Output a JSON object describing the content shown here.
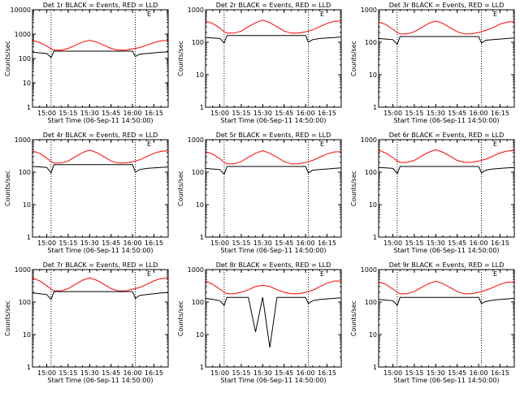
{
  "panels": [
    {
      "title": "Det 1r BLACK = Events, RED = LLD",
      "corner": "E",
      "ylabel": "Counts/sec",
      "xlabel": "Start Time (06-Sep-11 14:50:00)"
    },
    {
      "title": "Det 2r BLACK = Events, RED = LLD",
      "corner": "E",
      "ylabel": "Counts/sec",
      "xlabel": "Start Time (06-Sep-11 14:50:00)"
    },
    {
      "title": "Det 3r BLACK = Events, RED = LLD",
      "corner": "E",
      "ylabel": "Counts/sec",
      "xlabel": "Start Time (06-Sep-11 14:50:00)"
    },
    {
      "title": "Det 4r BLACK = Events, RED = LLD",
      "corner": "E",
      "ylabel": "Counts/sec",
      "xlabel": "Start Time (06-Sep-11 14:50:00)"
    },
    {
      "title": "Det 5r BLACK = Events, RED = LLD",
      "corner": "E",
      "ylabel": "Counts/sec",
      "xlabel": "Start Time (06-Sep-11 14:50:00)"
    },
    {
      "title": "Det 6r BLACK = Events, RED = LLD",
      "corner": "E",
      "ylabel": "Counts/sec",
      "xlabel": "Start Time (06-Sep-11 14:50:00)"
    },
    {
      "title": "Det 7r BLACK = Events, RED = LLD",
      "corner": "E",
      "ylabel": "Counts/sec",
      "xlabel": "Start Time (06-Sep-11 14:50:00)"
    },
    {
      "title": "Det 8r BLACK = Events, RED = LLD",
      "corner": "E",
      "ylabel": "Counts/sec",
      "xlabel": "Start Time (06-Sep-11 14:50:00)"
    },
    {
      "title": "Det 9r BLACK = Events, RED = LLD",
      "corner": "E",
      "ylabel": "Counts/sec",
      "xlabel": "Start Time (06-Sep-11 14:50:00)"
    }
  ],
  "chart_data": {
    "type": "line",
    "yscale": "log",
    "xlim": [
      "14:50",
      "16:25"
    ],
    "xticks": [
      "15:00",
      "15:15",
      "15:30",
      "15:45",
      "16:00",
      "16:15"
    ],
    "dotted_vlines": [
      "15:03",
      "16:02"
    ],
    "colors": {
      "events": "#000000",
      "lld": "#ff0000"
    },
    "x": [
      "14:50",
      "14:55",
      "15:00",
      "15:03",
      "15:05",
      "15:10",
      "15:15",
      "15:20",
      "15:25",
      "15:30",
      "15:35",
      "15:40",
      "15:45",
      "15:50",
      "15:55",
      "16:00",
      "16:02",
      "16:05",
      "16:10",
      "16:15",
      "16:20",
      "16:25"
    ],
    "panels": [
      {
        "ylim": [
          1,
          10000
        ],
        "yticks": [
          1,
          10,
          100,
          1000,
          10000
        ],
        "series": [
          {
            "key": "lld",
            "values": [
              550,
              450,
              320,
              250,
              220,
              220,
              260,
              350,
              470,
              560,
              470,
              350,
              260,
              220,
              220,
              250,
              260,
              280,
              350,
              450,
              530,
              550
            ]
          },
          {
            "key": "events",
            "values": [
              180,
              170,
              160,
              110,
              200,
              200,
              200,
              200,
              200,
              200,
              200,
              200,
              200,
              200,
              200,
              200,
              120,
              150,
              160,
              170,
              180,
              185
            ]
          }
        ]
      },
      {
        "ylim": [
          1,
          1000
        ],
        "yticks": [
          1,
          10,
          100,
          1000
        ],
        "series": [
          {
            "key": "lld",
            "values": [
              450,
              380,
              270,
              210,
              190,
              190,
              220,
              300,
              400,
              480,
              400,
              300,
              220,
              190,
              190,
              210,
              220,
              240,
              300,
              380,
              440,
              450
            ]
          },
          {
            "key": "events",
            "values": [
              140,
              135,
              130,
              95,
              160,
              160,
              160,
              160,
              160,
              160,
              160,
              160,
              160,
              160,
              160,
              160,
              100,
              120,
              130,
              135,
              140,
              145
            ]
          }
        ]
      },
      {
        "ylim": [
          1,
          1000
        ],
        "yticks": [
          1,
          10,
          100,
          1000
        ],
        "series": [
          {
            "key": "lld",
            "values": [
              420,
              350,
              250,
              200,
              180,
              180,
              210,
              280,
              380,
              450,
              380,
              280,
              210,
              180,
              180,
              200,
              210,
              230,
              280,
              360,
              420,
              430
            ]
          },
          {
            "key": "events",
            "values": [
              130,
              125,
              120,
              85,
              150,
              150,
              150,
              150,
              150,
              150,
              150,
              150,
              150,
              150,
              150,
              150,
              95,
              115,
              120,
              125,
              130,
              135
            ]
          }
        ]
      },
      {
        "ylim": [
          1,
          1000
        ],
        "yticks": [
          1,
          10,
          100,
          1000
        ],
        "series": [
          {
            "key": "lld",
            "values": [
              450,
              380,
              270,
              210,
              190,
              190,
              220,
              300,
              400,
              480,
              400,
              300,
              220,
              190,
              190,
              210,
              220,
              240,
              300,
              380,
              440,
              450
            ]
          },
          {
            "key": "events",
            "values": [
              150,
              145,
              140,
              95,
              170,
              170,
              170,
              170,
              170,
              170,
              170,
              170,
              170,
              170,
              170,
              170,
              100,
              120,
              130,
              135,
              140,
              145
            ]
          }
        ]
      },
      {
        "ylim": [
          1,
          1000
        ],
        "yticks": [
          1,
          10,
          100,
          1000
        ],
        "series": [
          {
            "key": "lld",
            "values": [
              430,
              360,
              260,
              200,
              180,
              180,
              210,
              290,
              380,
              460,
              380,
              290,
              210,
              180,
              180,
              200,
              210,
              230,
              290,
              360,
              420,
              430
            ]
          },
          {
            "key": "events",
            "values": [
              130,
              125,
              120,
              85,
              150,
              150,
              150,
              150,
              150,
              150,
              150,
              150,
              150,
              150,
              150,
              150,
              95,
              115,
              120,
              125,
              130,
              135
            ]
          }
        ]
      },
      {
        "ylim": [
          1,
          1000
        ],
        "yticks": [
          1,
          10,
          100,
          1000
        ],
        "series": [
          {
            "key": "lld",
            "values": [
              470,
              390,
              280,
              220,
              200,
              200,
              230,
              310,
              410,
              490,
              410,
              310,
              230,
              200,
              200,
              220,
              230,
              250,
              310,
              390,
              450,
              460
            ]
          },
          {
            "key": "events",
            "values": [
              140,
              135,
              130,
              90,
              150,
              150,
              150,
              150,
              150,
              150,
              150,
              150,
              150,
              150,
              150,
              150,
              95,
              115,
              125,
              130,
              135,
              140
            ]
          }
        ]
      },
      {
        "ylim": [
          1,
          1000
        ],
        "yticks": [
          1,
          10,
          100,
          1000
        ],
        "series": [
          {
            "key": "lld",
            "values": [
              550,
              450,
              320,
              250,
              220,
              220,
              260,
              350,
              470,
              560,
              470,
              350,
              260,
              220,
              220,
              250,
              260,
              280,
              350,
              450,
              530,
              550
            ]
          },
          {
            "key": "events",
            "values": [
              190,
              180,
              170,
              120,
              210,
              210,
              210,
              210,
              210,
              210,
              210,
              210,
              210,
              210,
              210,
              210,
              130,
              160,
              170,
              180,
              190,
              195
            ]
          }
        ]
      },
      {
        "ylim": [
          1,
          1000
        ],
        "yticks": [
          1,
          10,
          100,
          1000
        ],
        "series": [
          {
            "key": "lld",
            "values": [
              450,
              350,
              250,
              200,
              180,
              180,
              200,
              240,
              300,
              330,
              300,
              240,
              200,
              180,
              180,
              200,
              210,
              230,
              300,
              380,
              440,
              450
            ]
          },
          {
            "key": "events",
            "values": [
              130,
              120,
              110,
              80,
              140,
              140,
              140,
              140,
              12,
              140,
              4,
              140,
              140,
              140,
              140,
              140,
              90,
              110,
              120,
              125,
              130,
              135
            ]
          }
        ]
      },
      {
        "ylim": [
          1,
          1000
        ],
        "yticks": [
          1,
          10,
          100,
          1000
        ],
        "series": [
          {
            "key": "lld",
            "values": [
              420,
              350,
              250,
              200,
              180,
              180,
              210,
              280,
              370,
              440,
              370,
              280,
              210,
              180,
              180,
              200,
              210,
              230,
              280,
              350,
              410,
              420
            ]
          },
          {
            "key": "events",
            "values": [
              120,
              115,
              110,
              80,
              140,
              140,
              140,
              140,
              140,
              140,
              140,
              140,
              140,
              140,
              140,
              140,
              90,
              105,
              115,
              120,
              125,
              130
            ]
          }
        ]
      }
    ]
  }
}
